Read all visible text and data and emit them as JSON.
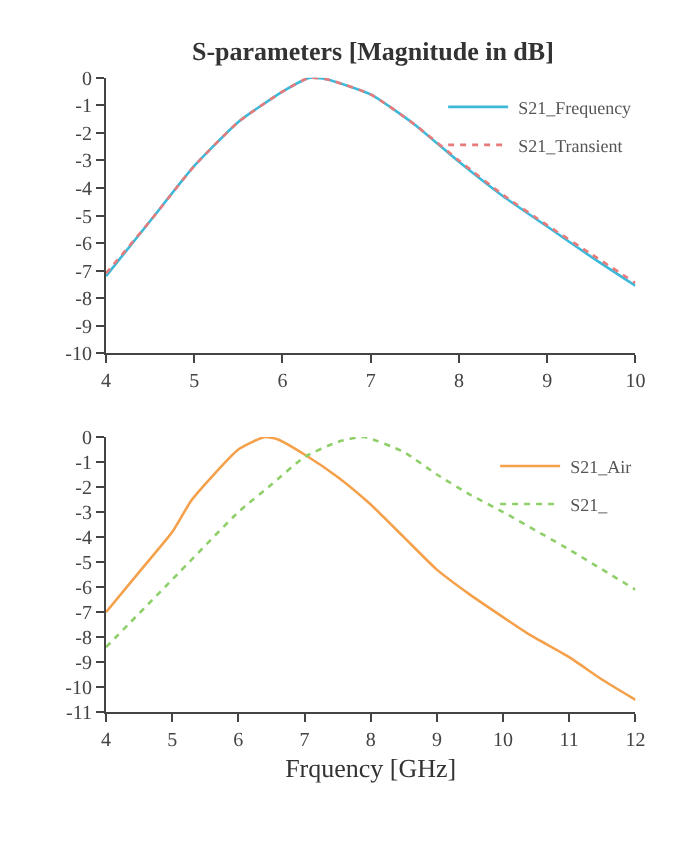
{
  "chart_data": [
    {
      "type": "line",
      "title": "S-parameters [Magnitude in dB]",
      "xlim": [
        4,
        10
      ],
      "xticks": [
        4,
        5,
        6,
        7,
        8,
        9,
        10
      ],
      "ylim": [
        -10,
        0
      ],
      "yticks": [
        -10,
        -9,
        -8,
        -7,
        -6,
        -5,
        -4,
        -3,
        -2,
        -1,
        0
      ],
      "legend": "top right",
      "series": [
        {
          "name": "S21_Frequency",
          "color": "#3db8d8",
          "line_style": "solid",
          "x": [
            4,
            4.5,
            5,
            5.5,
            6,
            6.3,
            6.5,
            7,
            7.5,
            8,
            8.5,
            9,
            9.5,
            10
          ],
          "values": [
            -7.2,
            -5.2,
            -3.2,
            -1.6,
            -0.5,
            0,
            -0.05,
            -0.6,
            -1.7,
            -3.05,
            -4.3,
            -5.4,
            -6.5,
            -7.55
          ]
        },
        {
          "name": "S21_Transient",
          "color": "#e87a7a",
          "line_style": "dotted",
          "x": [
            4,
            4.5,
            5,
            5.5,
            6,
            6.3,
            6.5,
            7,
            7.5,
            8,
            8.5,
            9,
            9.5,
            10
          ],
          "values": [
            -7.1,
            -5.2,
            -3.2,
            -1.6,
            -0.5,
            0,
            -0.05,
            -0.6,
            -1.7,
            -3.0,
            -4.25,
            -5.35,
            -6.4,
            -7.45
          ]
        }
      ]
    },
    {
      "type": "line",
      "xlabel": "Frquency [GHz]",
      "xlim": [
        4,
        12
      ],
      "xticks": [
        4,
        5,
        6,
        7,
        8,
        9,
        10,
        11,
        12
      ],
      "ylim": [
        -11,
        0
      ],
      "yticks": [
        -11,
        -10,
        -9,
        -8,
        -7,
        -6,
        -5,
        -4,
        -3,
        -2,
        -1,
        0
      ],
      "legend": "top right",
      "series": [
        {
          "name": "S21_Air",
          "color": "#f5a04a",
          "line_style": "solid",
          "x": [
            4,
            4.5,
            5,
            5.3,
            6,
            6.4,
            6.6,
            7,
            7.5,
            8,
            8.5,
            9,
            9.5,
            10,
            10.4,
            11,
            11.5,
            12
          ],
          "values": [
            -7.0,
            -5.4,
            -3.8,
            -2.5,
            -0.5,
            0,
            -0.1,
            -0.7,
            -1.6,
            -2.7,
            -4.0,
            -5.3,
            -6.3,
            -7.2,
            -7.9,
            -8.8,
            -9.7,
            -10.5
          ]
        },
        {
          "name": "S21_",
          "color": "#8fcf6a",
          "line_style": "dotted",
          "x": [
            4,
            5,
            6,
            6.5,
            7,
            7.5,
            7.9,
            8.5,
            9,
            9.5,
            10,
            11,
            12
          ],
          "values": [
            -8.4,
            -5.7,
            -3.0,
            -1.9,
            -0.8,
            -0.2,
            0,
            -0.6,
            -1.5,
            -2.3,
            -3.0,
            -4.5,
            -6.1
          ]
        }
      ]
    }
  ]
}
